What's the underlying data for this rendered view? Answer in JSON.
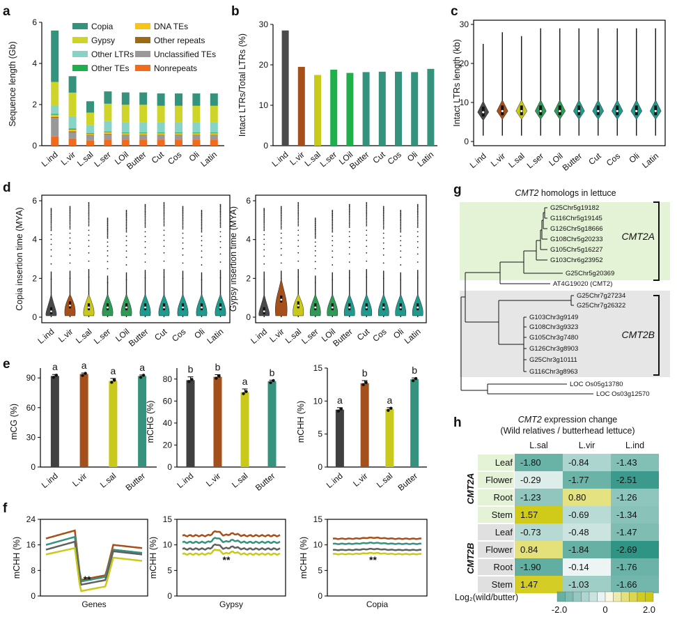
{
  "panels": {
    "a": {
      "letter": "a",
      "type": "stacked-bar",
      "ylabel": "Sequence length (Gb)",
      "ylim": [
        0,
        6
      ],
      "yticks": [
        0,
        2,
        4,
        6
      ],
      "categories": [
        "L.ind",
        "L.vir",
        "L.sal",
        "L.ser",
        "LOil",
        "Butter",
        "Cut",
        "Cos",
        "Oli",
        "Latin"
      ],
      "series": [
        {
          "name": "Nonrepeats",
          "color": "#f26b1d",
          "values": [
            0.45,
            0.35,
            0.25,
            0.3,
            0.3,
            0.3,
            0.3,
            0.3,
            0.3,
            0.3
          ]
        },
        {
          "name": "Unclassified TEs",
          "color": "#999999",
          "values": [
            0.9,
            0.3,
            0.25,
            0.25,
            0.2,
            0.2,
            0.2,
            0.2,
            0.2,
            0.2
          ]
        },
        {
          "name": "Other repeats",
          "color": "#9c6b15",
          "values": [
            0.05,
            0.05,
            0.03,
            0.03,
            0.03,
            0.03,
            0.03,
            0.03,
            0.03,
            0.03
          ]
        },
        {
          "name": "DNA TEs",
          "color": "#f7c419",
          "values": [
            0.1,
            0.08,
            0.05,
            0.07,
            0.07,
            0.07,
            0.07,
            0.07,
            0.07,
            0.07
          ]
        },
        {
          "name": "Other TEs",
          "color": "#20b04b",
          "values": [
            0.05,
            0.05,
            0.03,
            0.04,
            0.04,
            0.04,
            0.04,
            0.04,
            0.04,
            0.04
          ]
        },
        {
          "name": "Other LTRs",
          "color": "#88d3c8",
          "values": [
            0.4,
            0.6,
            0.4,
            0.5,
            0.5,
            0.5,
            0.5,
            0.5,
            0.5,
            0.5
          ]
        },
        {
          "name": "Gypsy",
          "color": "#cfd428",
          "values": [
            1.15,
            1.15,
            0.6,
            0.85,
            0.85,
            0.85,
            0.8,
            0.8,
            0.8,
            0.8
          ]
        },
        {
          "name": "Copia",
          "color": "#35937d",
          "values": [
            2.5,
            0.8,
            0.55,
            0.6,
            0.6,
            0.6,
            0.6,
            0.6,
            0.6,
            0.6
          ]
        }
      ],
      "legend": [
        "Copia",
        "DNA TEs",
        "Gypsy",
        "Other repeats",
        "Other LTRs",
        "Unclassified TEs",
        "Other TEs",
        "Nonrepeats"
      ]
    },
    "b": {
      "letter": "b",
      "type": "bar",
      "ylabel": "Intact LTRs/Total LTRs (%)",
      "ylim": [
        0,
        30
      ],
      "yticks": [
        0,
        10,
        20,
        30
      ],
      "categories": [
        "L.ind",
        "L.vir",
        "L.sal",
        "L.ser",
        "LOil",
        "Butter",
        "Cut",
        "Cos",
        "Oli",
        "Latin"
      ],
      "values": [
        28.5,
        19.5,
        17.5,
        18.8,
        18.0,
        18.2,
        18.3,
        18.3,
        18.2,
        19.0
      ],
      "colors": [
        "#4a4a4a",
        "#a5501b",
        "#c9c91c",
        "#20b04b",
        "#20b04b",
        "#35937d",
        "#35937d",
        "#35937d",
        "#35937d",
        "#35937d"
      ]
    },
    "c": {
      "letter": "c",
      "type": "violin",
      "ylabel": "Intact LTRs length (kb)",
      "ylim": [
        0,
        30
      ],
      "yticks": [
        0,
        10,
        20,
        30
      ],
      "categories": [
        "L.ind",
        "L.vir",
        "L.sal",
        "L.ser",
        "LOil",
        "Butter",
        "Cut",
        "Cos",
        "Oli",
        "Latin"
      ],
      "medians": [
        7.5,
        7.8,
        7.8,
        7.8,
        7.8,
        7.8,
        7.8,
        7.8,
        7.8,
        7.8
      ],
      "max": [
        25,
        28,
        27,
        29,
        29,
        29,
        29,
        29,
        29,
        29
      ],
      "colors": [
        "#4a4a4a",
        "#a5501b",
        "#c9c91c",
        "#2e9a55",
        "#2e9a55",
        "#1f9a8c",
        "#1f9a8c",
        "#1f9a8c",
        "#1f9a8c",
        "#1f9a8c"
      ]
    },
    "d1": {
      "letter": "d",
      "type": "violin",
      "ylabel": "Copia insertion time (MYA)",
      "ylim": [
        0,
        6
      ],
      "yticks": [
        0,
        2,
        4,
        6
      ],
      "categories": [
        "L.ind",
        "L.vir",
        "L.sal",
        "L.ser",
        "LOil",
        "Butter",
        "Cut",
        "Cos",
        "Oli",
        "Latin"
      ],
      "medians": [
        0.3,
        0.6,
        0.5,
        0.5,
        0.5,
        0.5,
        0.5,
        0.5,
        0.5,
        0.5
      ],
      "max": [
        5.6,
        5.7,
        5.9,
        5.1,
        5.5,
        5.8,
        5.9,
        5.7,
        5.5,
        5.8
      ],
      "colors": [
        "#4a4a4a",
        "#a5501b",
        "#c9c91c",
        "#2e9a55",
        "#2e9a55",
        "#1f9a8c",
        "#1f9a8c",
        "#1f9a8c",
        "#1f9a8c",
        "#1f9a8c"
      ]
    },
    "d2": {
      "type": "violin",
      "ylabel": "Gypsy insertion time (MYA)",
      "ylim": [
        0,
        6
      ],
      "yticks": [
        0,
        2,
        4,
        6
      ],
      "categories": [
        "L.ind",
        "L.vir",
        "L.sal",
        "L.ser",
        "LOil",
        "Butter",
        "Cut",
        "Cos",
        "Oli",
        "Latin"
      ],
      "medians": [
        0.3,
        0.9,
        0.6,
        0.5,
        0.5,
        0.5,
        0.5,
        0.5,
        0.5,
        0.5
      ],
      "max": [
        5.6,
        5.7,
        5.9,
        5.1,
        5.5,
        5.8,
        5.9,
        5.7,
        5.5,
        5.8
      ],
      "colors": [
        "#4a4a4a",
        "#a5501b",
        "#c9c91c",
        "#2e9a55",
        "#2e9a55",
        "#1f9a8c",
        "#1f9a8c",
        "#1f9a8c",
        "#1f9a8c",
        "#1f9a8c"
      ]
    },
    "e1": {
      "letter": "e",
      "type": "bar",
      "ylabel": "mCG (%)",
      "ylim": [
        0,
        100
      ],
      "yticks": [
        0,
        30,
        60,
        90
      ],
      "categories": [
        "L.ind",
        "L.vir",
        "L.sal",
        "Butter"
      ],
      "values": [
        92,
        94,
        87,
        92
      ],
      "errors": [
        1.5,
        1,
        2.5,
        1
      ],
      "letters": [
        "a",
        "a",
        "a",
        "a"
      ],
      "colors": [
        "#404040",
        "#a5501b",
        "#c9c91c",
        "#35937d"
      ]
    },
    "e2": {
      "type": "bar",
      "ylabel": "mCHG (%)",
      "ylim": [
        0,
        90
      ],
      "yticks": [
        0,
        20,
        40,
        60,
        80
      ],
      "categories": [
        "L.ind",
        "L.vir",
        "L.sal",
        "Butter"
      ],
      "values": [
        79,
        82,
        68,
        78
      ],
      "errors": [
        3,
        2,
        3,
        1
      ],
      "letters": [
        "b",
        "b",
        "a",
        "b"
      ],
      "colors": [
        "#404040",
        "#a5501b",
        "#c9c91c",
        "#35937d"
      ]
    },
    "e3": {
      "type": "bar",
      "ylabel": "mCHH (%)",
      "ylim": [
        0,
        15
      ],
      "yticks": [
        0,
        5,
        10,
        15
      ],
      "categories": [
        "L.ind",
        "L.vir",
        "L.sal",
        "Butter"
      ],
      "values": [
        8.7,
        12.7,
        8.8,
        13.3
      ],
      "errors": [
        0.3,
        0.4,
        0.2,
        0.2
      ],
      "letters": [
        "a",
        "b",
        "a",
        "b"
      ],
      "colors": [
        "#404040",
        "#a5501b",
        "#c9c91c",
        "#35937d"
      ]
    },
    "f1": {
      "letter": "f",
      "type": "line",
      "ylabel": "mCHH (%)",
      "xlabel": "Genes",
      "ylim": [
        0,
        24
      ],
      "yticks": [
        0,
        8,
        16,
        24
      ],
      "annotation": "**"
    },
    "f2": {
      "type": "line",
      "ylabel": "mCHH (%)",
      "xlabel": "Gypsy",
      "ylim": [
        0,
        15
      ],
      "yticks": [
        0,
        5,
        10,
        15
      ],
      "annotation": "**"
    },
    "f3": {
      "type": "line",
      "ylabel": "mCHH (%)",
      "xlabel": "Copia",
      "ylim": [
        0,
        15
      ],
      "yticks": [
        0,
        5,
        10,
        15
      ],
      "annotation": "**"
    },
    "g": {
      "letter": "g",
      "type": "tree",
      "title_italic": "CMT2",
      "title_rest": " homologs in lettuce",
      "cmt2a_leaves": [
        "G25Chr5g19182",
        "G116Chr5g19145",
        "G126Chr5g18666",
        "G108Chr5g20233",
        "G105Chr5g16227",
        "G103Chr6g23952",
        "G25Chr5g20369"
      ],
      "at_leaf": "AT4G19020 (CMT2)",
      "cmt2b_leaves": [
        "G25Chr7g27234",
        "G25Chr7g26322",
        "G103Chr3g9149",
        "G108Chr3g9323",
        "G105Chr3g7480",
        "G126Chr3g8903",
        "G25Chr3g10111",
        "G116Chr3g8963"
      ],
      "loc_leaves": [
        "LOC Os05g13780",
        "LOC Os03g12570"
      ],
      "clade_a": "CMT2A",
      "clade_b": "CMT2B"
    },
    "h": {
      "letter": "h",
      "type": "heatmap",
      "title_italic": "CMT2",
      "title_rest": " expression change",
      "subtitle": "(Wild relatives / butterhead lettuce)",
      "columns": [
        "L.sal",
        "L.vir",
        "L.ind"
      ],
      "groups": [
        "CMT2A",
        "CMT2B"
      ],
      "rows": [
        "Leaf",
        "Flower",
        "Root",
        "Stem",
        "Leaf",
        "Flower",
        "Root",
        "Stem"
      ],
      "values": [
        [
          "-1.80",
          "-0.84",
          "-1.43"
        ],
        [
          "-0.29",
          "-1.77",
          "-2.51"
        ],
        [
          "-1.23",
          "0.80",
          "-1.26"
        ],
        [
          "1.57",
          "-0.69",
          "-1.34"
        ],
        [
          "-0.73",
          "-0.48",
          "-1.47"
        ],
        [
          "0.84",
          "-1.84",
          "-2.69"
        ],
        [
          "-1.90",
          "-0.14",
          "-1.76"
        ],
        [
          "1.47",
          "-1.03",
          "-1.66"
        ]
      ],
      "colorbar_label": "Log₂(wild/butter)",
      "colorbar_ticks": [
        "-2.0",
        "0",
        "2.0"
      ],
      "scale_low": "#2f9484",
      "scale_mid": "#ffffff",
      "scale_high": "#cfc914"
    }
  }
}
